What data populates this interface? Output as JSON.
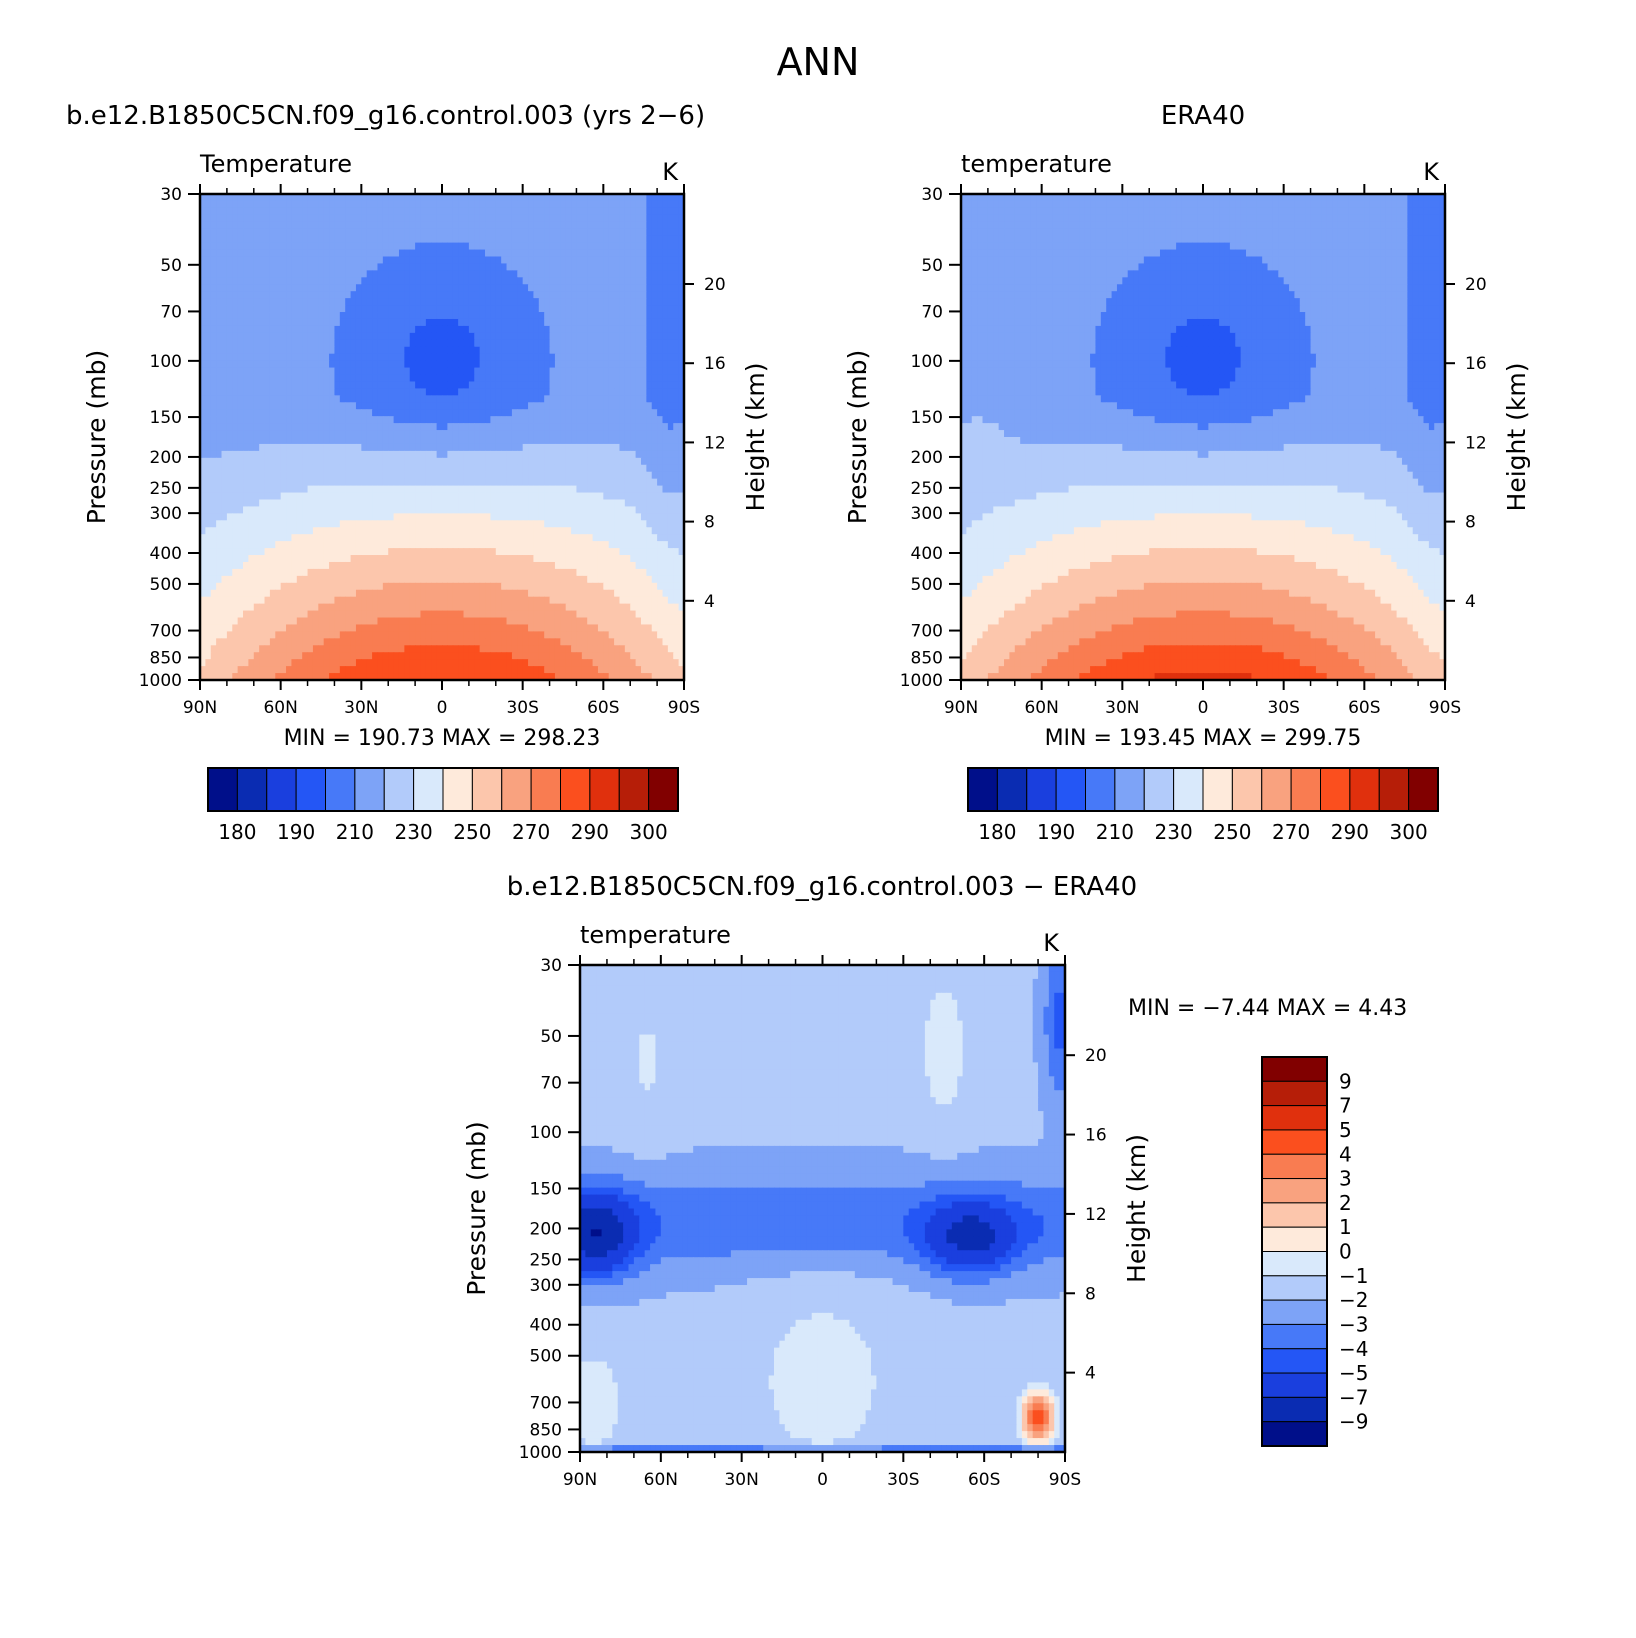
{
  "figure": {
    "title": "ANN",
    "panels": [
      {
        "id": "model",
        "title": "b.e12.B1850C5CN.f09_g16.control.003 (yrs 2−6)",
        "variable": "Temperature",
        "units": "K",
        "ylabel": "Pressure (mb)",
        "ylabel_right": "Height (km)",
        "minmax": "MIN =  190.73   MAX =  298.23",
        "field": "model"
      },
      {
        "id": "obs",
        "title": "ERA40",
        "variable": "temperature",
        "units": "K",
        "ylabel": "Pressure (mb)",
        "ylabel_right": "Height (km)",
        "minmax": "MIN =  193.45   MAX =  299.75",
        "field": "obs"
      },
      {
        "id": "diff",
        "title": "b.e12.B1850C5CN.f09_g16.control.003 − ERA40",
        "variable": "temperature",
        "units": "K",
        "ylabel": "Pressure (mb)",
        "ylabel_right": "Height (km)",
        "minmax": "MIN =   −7.44   MAX =     4.43",
        "field": "diff"
      }
    ],
    "colorbar_abs": {
      "colors": [
        "#000f8a",
        "#0a2cb2",
        "#1a3fde",
        "#2456f5",
        "#4779f8",
        "#7da3f7",
        "#b2cbfa",
        "#d9e9fb",
        "#feeadb",
        "#fcc6ac",
        "#f9a27f",
        "#f97c51",
        "#fb4f1e",
        "#e0300d",
        "#b61e08",
        "#810000"
      ],
      "labels": [
        "180",
        "190",
        "210",
        "230",
        "250",
        "270",
        "290",
        "300"
      ]
    },
    "colorbar_diff": {
      "colors": [
        "#810000",
        "#b61e08",
        "#e0300d",
        "#fb4f1e",
        "#f97c51",
        "#f9a27f",
        "#fcc6ac",
        "#feeadb",
        "#d9e9fb",
        "#b2cbfa",
        "#7da3f7",
        "#4779f8",
        "#2456f5",
        "#1a3fde",
        "#0a2cb2",
        "#000f8a"
      ],
      "labels": [
        "9",
        "7",
        "5",
        "4",
        "3",
        "2",
        "1",
        "0",
        "−1",
        "−2",
        "−3",
        "−4",
        "−5",
        "−7",
        "−9"
      ]
    }
  },
  "chart_data": [
    {
      "type": "heatmap",
      "title": "b.e12.B1850C5CN.f09_g16.control.003 (yrs 2−6)",
      "subtitle": "Temperature",
      "units": "K",
      "xlabel": "",
      "ylabel": "Pressure (mb)",
      "ylabel_right": "Height (km)",
      "x_ticks": [
        "90N",
        "60N",
        "30N",
        "0",
        "30S",
        "60S",
        "90S"
      ],
      "y_ticks": [
        30,
        50,
        70,
        100,
        150,
        200,
        250,
        300,
        400,
        500,
        700,
        850,
        1000
      ],
      "y_right_ticks": [
        4,
        8,
        12,
        16,
        20
      ],
      "ylim": [
        1000,
        30
      ],
      "y_scale": "log",
      "min": 190.73,
      "max": 298.23,
      "levels": [
        180,
        185,
        190,
        200,
        210,
        220,
        230,
        240,
        250,
        260,
        270,
        280,
        290,
        295,
        300
      ]
    },
    {
      "type": "heatmap",
      "title": "ERA40",
      "subtitle": "temperature",
      "units": "K",
      "xlabel": "",
      "ylabel": "Pressure (mb)",
      "ylabel_right": "Height (km)",
      "x_ticks": [
        "90N",
        "60N",
        "30N",
        "0",
        "30S",
        "60S",
        "90S"
      ],
      "y_ticks": [
        30,
        50,
        70,
        100,
        150,
        200,
        250,
        300,
        400,
        500,
        700,
        850,
        1000
      ],
      "y_right_ticks": [
        4,
        8,
        12,
        16,
        20
      ],
      "ylim": [
        1000,
        30
      ],
      "y_scale": "log",
      "min": 193.45,
      "max": 299.75,
      "levels": [
        180,
        185,
        190,
        200,
        210,
        220,
        230,
        240,
        250,
        260,
        270,
        280,
        290,
        295,
        300
      ]
    },
    {
      "type": "heatmap",
      "title": "b.e12.B1850C5CN.f09_g16.control.003 − ERA40",
      "subtitle": "temperature",
      "units": "K",
      "xlabel": "",
      "ylabel": "Pressure (mb)",
      "ylabel_right": "Height (km)",
      "x_ticks": [
        "90N",
        "60N",
        "30N",
        "0",
        "30S",
        "60S",
        "90S"
      ],
      "y_ticks": [
        30,
        50,
        70,
        100,
        150,
        200,
        250,
        300,
        400,
        500,
        700,
        850,
        1000
      ],
      "y_right_ticks": [
        4,
        8,
        12,
        16,
        20
      ],
      "ylim": [
        1000,
        30
      ],
      "y_scale": "log",
      "min": -7.44,
      "max": 4.43,
      "levels": [
        -9,
        -7,
        -5,
        -4,
        -3,
        -2,
        -1,
        0,
        1,
        2,
        3,
        4,
        5,
        7,
        9
      ]
    }
  ]
}
